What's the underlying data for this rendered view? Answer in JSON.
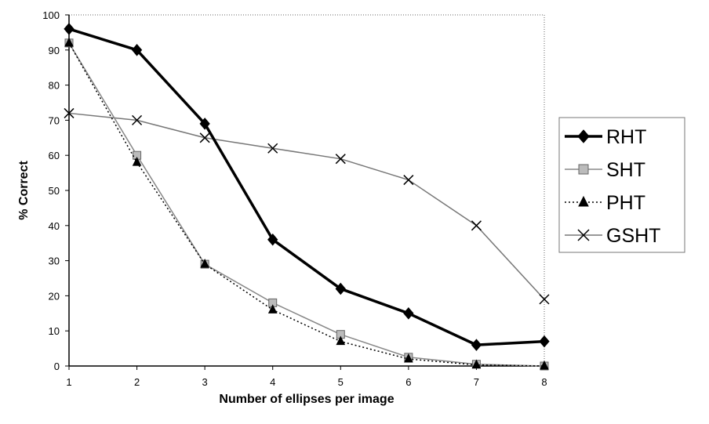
{
  "chart_data": {
    "type": "line",
    "title": "",
    "xlabel": "Number of ellipses per image",
    "ylabel": "% Correct",
    "x": [
      1,
      2,
      3,
      4,
      5,
      6,
      7,
      8
    ],
    "xlim": [
      1,
      8
    ],
    "ylim": [
      0,
      100
    ],
    "yticks": [
      0,
      10,
      20,
      30,
      40,
      50,
      60,
      70,
      80,
      90,
      100
    ],
    "grid": false,
    "legend_position": "right",
    "series": [
      {
        "name": "RHT",
        "values": [
          96,
          90,
          69,
          36,
          22,
          15,
          6,
          7
        ],
        "color": "#000000",
        "style": "solid-thick",
        "marker": "diamond"
      },
      {
        "name": "SHT",
        "values": [
          92,
          60,
          29,
          18,
          9,
          2.5,
          0.5,
          0
        ],
        "color": "#888888",
        "style": "solid",
        "marker": "square"
      },
      {
        "name": "PHT",
        "values": [
          92,
          58,
          29,
          16,
          7,
          2,
          0.3,
          0
        ],
        "color": "#000000",
        "style": "dotted",
        "marker": "triangle"
      },
      {
        "name": "GSHT",
        "values": [
          72,
          70,
          65,
          62,
          59,
          53,
          40,
          19
        ],
        "color": "#777777",
        "style": "solid",
        "marker": "x"
      }
    ]
  }
}
